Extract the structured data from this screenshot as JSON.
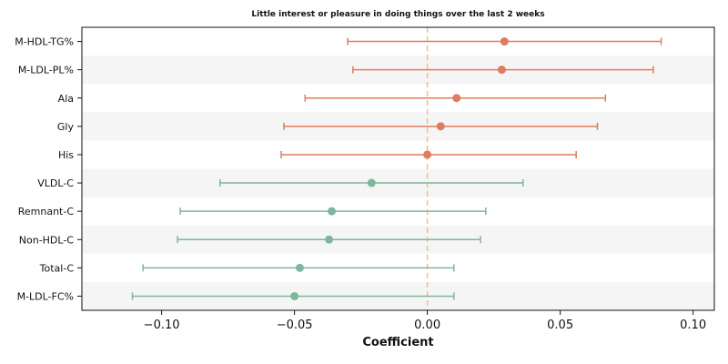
{
  "chart_data": {
    "type": "forest",
    "title": "Little interest or pleasure in doing things over the last 2 weeks",
    "xlabel": "Coefficient",
    "ylabel": "",
    "xlim": [
      -0.13,
      0.108
    ],
    "xticks": [
      -0.1,
      -0.05,
      0.0,
      0.05,
      0.1
    ],
    "xtick_labels": [
      "−0.10",
      "−0.05",
      "0.00",
      "0.05",
      "0.10"
    ],
    "reference_line": 0.0,
    "row_banding": true,
    "grid": false,
    "colors": {
      "positive": "#e07b5f",
      "negative": "#7fb69c",
      "reference_line": "#f0c080",
      "band": "#f5f5f5"
    },
    "rows": [
      {
        "label": "M-HDL-TG%",
        "estimate": 0.029,
        "lower": -0.03,
        "upper": 0.088,
        "group": "positive"
      },
      {
        "label": "M-LDL-PL%",
        "estimate": 0.028,
        "lower": -0.028,
        "upper": 0.085,
        "group": "positive"
      },
      {
        "label": "Ala",
        "estimate": 0.011,
        "lower": -0.046,
        "upper": 0.067,
        "group": "positive"
      },
      {
        "label": "Gly",
        "estimate": 0.005,
        "lower": -0.054,
        "upper": 0.064,
        "group": "positive"
      },
      {
        "label": "His",
        "estimate": 0.0,
        "lower": -0.055,
        "upper": 0.056,
        "group": "positive"
      },
      {
        "label": "VLDL-C",
        "estimate": -0.021,
        "lower": -0.078,
        "upper": 0.036,
        "group": "negative"
      },
      {
        "label": "Remnant-C",
        "estimate": -0.036,
        "lower": -0.093,
        "upper": 0.022,
        "group": "negative"
      },
      {
        "label": "Non-HDL-C",
        "estimate": -0.037,
        "lower": -0.094,
        "upper": 0.02,
        "group": "negative"
      },
      {
        "label": "Total-C",
        "estimate": -0.048,
        "lower": -0.107,
        "upper": 0.01,
        "group": "negative"
      },
      {
        "label": "M-LDL-FC%",
        "estimate": -0.05,
        "lower": -0.111,
        "upper": 0.01,
        "group": "negative"
      }
    ]
  }
}
